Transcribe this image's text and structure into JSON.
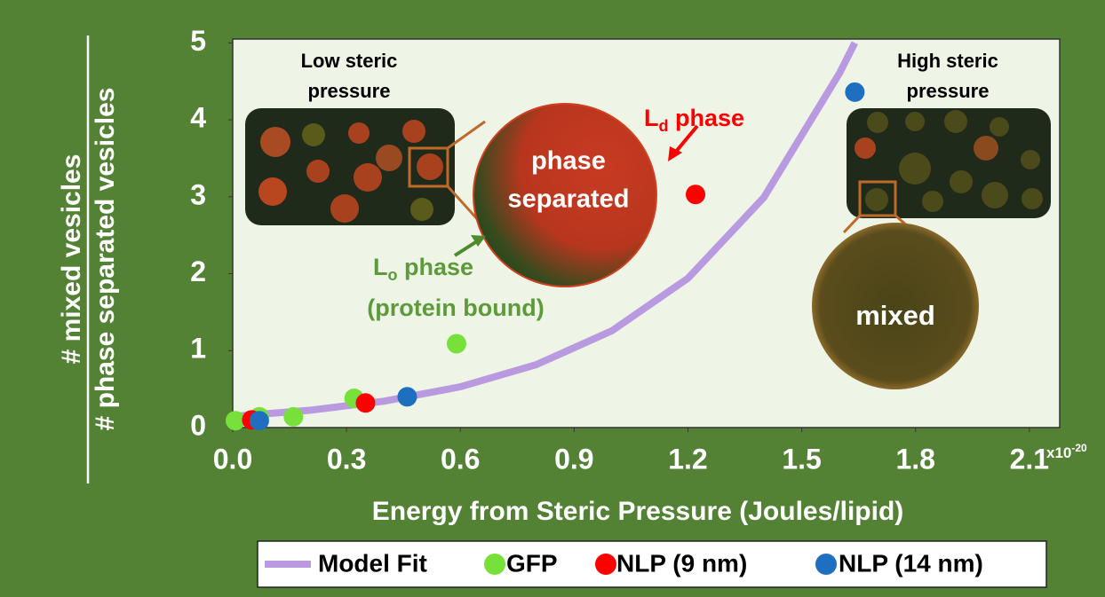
{
  "chart_data": {
    "type": "scatter",
    "x_label": "Energy from Steric Pressure (Joules/lipid)",
    "x_multiplier": {
      "base": "x10",
      "exp": "-20"
    },
    "y_label_numerator": "# mixed vesicles",
    "y_label_denominator": "# phase separated vesicles",
    "xlim": [
      0,
      2.18
    ],
    "ylim": [
      0,
      5.05
    ],
    "xticks": [
      {
        "value": 0,
        "label": "0.0"
      },
      0.3,
      0.6,
      0.9,
      1.2,
      1.5,
      1.8,
      2.1
    ],
    "yticks": [
      0,
      1,
      2,
      3,
      4,
      5
    ],
    "series": [
      {
        "name": "Model Fit",
        "type": "line",
        "color": "#b99ae0",
        "x": [
          0,
          0.2,
          0.4,
          0.6,
          0.8,
          1.0,
          1.2,
          1.4,
          1.6,
          1.64
        ],
        "values": [
          0.145,
          0.223,
          0.344,
          0.53,
          0.817,
          1.259,
          1.94,
          2.99,
          4.61,
          5.0
        ]
      },
      {
        "name": "GFP",
        "type": "scatter",
        "color": "#77e03a",
        "x": [
          0.007,
          0.07,
          0.16,
          0.32,
          0.59
        ],
        "values": [
          0.09,
          0.14,
          0.14,
          0.38,
          1.09
        ]
      },
      {
        "name": "NLP (9 nm)",
        "type": "scatter",
        "color": "#ff0000",
        "x": [
          0.05,
          0.35,
          1.22
        ],
        "values": [
          0.1,
          0.32,
          3.03
        ]
      },
      {
        "name": "NLP (14 nm)",
        "type": "scatter",
        "color": "#1f6fc0",
        "x": [
          0.07,
          0.46,
          1.64
        ],
        "values": [
          0.09,
          0.4,
          4.36
        ]
      }
    ],
    "annotations": {
      "low_pressure": [
        "Low steric",
        "pressure"
      ],
      "high_pressure": [
        "High steric",
        "pressure"
      ],
      "phase_separated": [
        "phase",
        "separated"
      ],
      "mixed": "mixed",
      "ld_phase": {
        "main": "L",
        "sub": "d",
        "rest": " phase"
      },
      "lo_phase": {
        "main": "L",
        "sub": "o",
        "rest": " phase"
      },
      "lo_note": "(protein bound)"
    }
  }
}
